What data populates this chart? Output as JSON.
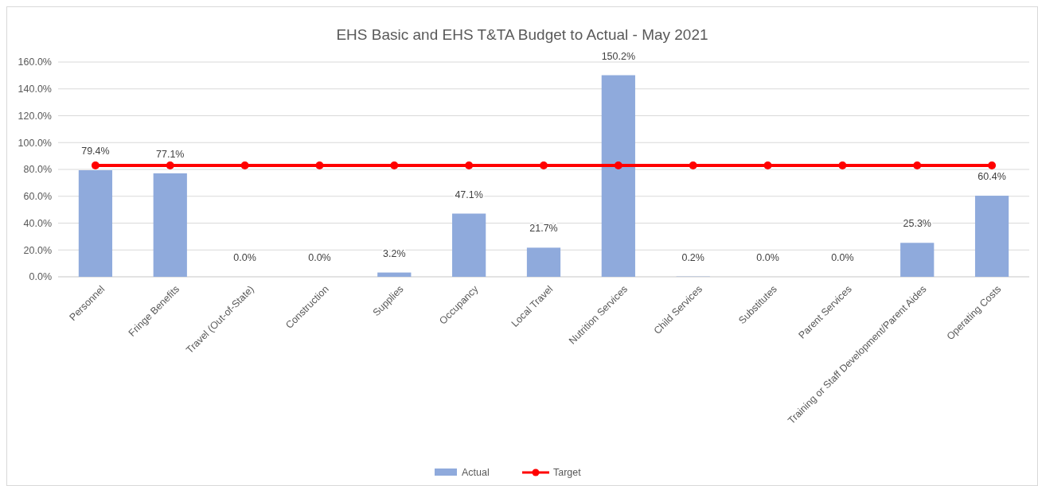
{
  "chart_data": {
    "type": "bar",
    "title": "EHS Basic and EHS T&TA Budget to Actual - May 2021",
    "categories": [
      "Personnel",
      "Fringe Benefits",
      "Travel (Out-of-State)",
      "Construction",
      "Supplies",
      "Occupancy",
      "Local Travel",
      "Nutrition Services",
      "Child Services",
      "Substitutes",
      "Parent Services",
      "Training or Staff Development/Parent Aides",
      "Operating Costs"
    ],
    "series": [
      {
        "name": "Actual",
        "color": "#8faadc",
        "values": [
          79.4,
          77.1,
          0,
          0,
          3.2,
          47.1,
          21.7,
          150.2,
          0.2,
          0,
          0,
          25.3,
          60.4
        ],
        "value_labels": [
          "79.4%",
          "77.1%",
          "0.0%",
          "0.0%",
          "3.2%",
          "47.1%",
          "21.7%",
          "150.2%",
          "0.2%",
          "0.0%",
          "0.0%",
          "25.3%",
          "60.4%"
        ]
      },
      {
        "name": "Target",
        "type": "line",
        "color": "#ff0000",
        "values": [
          83,
          83,
          83,
          83,
          83,
          83,
          83,
          83,
          83,
          83,
          83,
          83,
          83
        ],
        "marker": "circle"
      }
    ],
    "ylim": [
      0,
      160
    ],
    "yticks": [
      {
        "value": 0,
        "label": "0.0%"
      },
      {
        "value": 20,
        "label": "20.0%"
      },
      {
        "value": 40,
        "label": "40.0%"
      },
      {
        "value": 60,
        "label": "60.0%"
      },
      {
        "value": 80,
        "label": "80.0%"
      },
      {
        "value": 100,
        "label": "100.0%"
      },
      {
        "value": 120,
        "label": "120.0%"
      },
      {
        "value": 140,
        "label": "140.0%"
      },
      {
        "value": 160,
        "label": "160.0%"
      }
    ],
    "grid": "y",
    "legend": "bottom"
  }
}
